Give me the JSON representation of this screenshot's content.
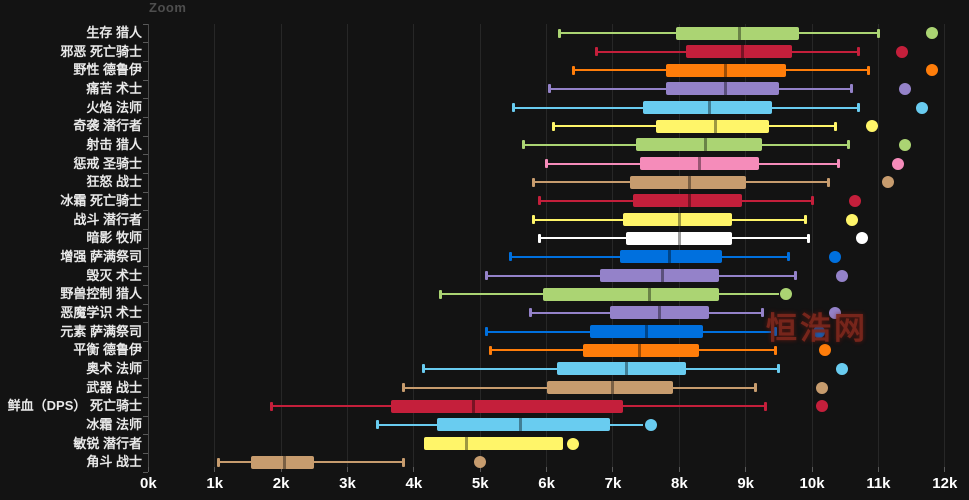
{
  "page": {
    "background": "#131313",
    "zoom_label": "Zoom",
    "watermark_text": "恒浩网",
    "watermark_color": "#7c271c"
  },
  "chart_data": {
    "type": "boxplot",
    "orientation": "horizontal",
    "title": "",
    "xlabel": "",
    "ylabel": "",
    "x_unit": "k",
    "xlim": [
      0,
      12
    ],
    "grid": true,
    "x_ticks": [
      "0k",
      "1k",
      "2k",
      "3k",
      "4k",
      "5k",
      "6k",
      "7k",
      "8k",
      "9k",
      "10k",
      "11k",
      "12k"
    ],
    "rows": [
      {
        "label": "生存 猎人",
        "color": "#ABD473",
        "low": 6.2,
        "q1": 7.95,
        "median": 8.9,
        "q3": 9.8,
        "high": 11.0,
        "outliers": [
          11.8
        ]
      },
      {
        "label": "邪恶 死亡骑士",
        "color": "#C41F3B",
        "low": 6.75,
        "q1": 8.1,
        "median": 8.95,
        "q3": 9.7,
        "high": 10.7,
        "outliers": [
          11.35
        ]
      },
      {
        "label": "野性 德鲁伊",
        "color": "#FF7D0A",
        "low": 6.4,
        "q1": 7.8,
        "median": 8.7,
        "q3": 9.6,
        "high": 10.85,
        "outliers": [
          11.8
        ]
      },
      {
        "label": "痛苦 术士",
        "color": "#9482C9",
        "low": 6.05,
        "q1": 7.8,
        "median": 8.7,
        "q3": 9.5,
        "high": 10.6,
        "outliers": [
          11.4
        ]
      },
      {
        "label": "火焰 法师",
        "color": "#69CCF0",
        "low": 5.5,
        "q1": 7.45,
        "median": 8.45,
        "q3": 9.4,
        "high": 10.7,
        "outliers": [
          11.65
        ]
      },
      {
        "label": "奇袭 潜行者",
        "color": "#FFF569",
        "low": 6.1,
        "q1": 7.65,
        "median": 8.55,
        "q3": 9.35,
        "high": 10.35,
        "outliers": [
          10.9
        ]
      },
      {
        "label": "射击 猎人",
        "color": "#ABD473",
        "low": 5.65,
        "q1": 7.35,
        "median": 8.4,
        "q3": 9.25,
        "high": 10.55,
        "outliers": [
          11.4
        ]
      },
      {
        "label": "惩戒 圣骑士",
        "color": "#F58CBA",
        "low": 6.0,
        "q1": 7.4,
        "median": 8.3,
        "q3": 9.2,
        "high": 10.4,
        "outliers": [
          11.3
        ]
      },
      {
        "label": "狂怒 战士",
        "color": "#C79C6E",
        "low": 5.8,
        "q1": 7.25,
        "median": 8.15,
        "q3": 9.0,
        "high": 10.25,
        "outliers": [
          11.15
        ]
      },
      {
        "label": "冰霜 死亡骑士",
        "color": "#C41F3B",
        "low": 5.9,
        "q1": 7.3,
        "median": 8.15,
        "q3": 8.95,
        "high": 10.0,
        "outliers": [
          10.65
        ]
      },
      {
        "label": "战斗 潜行者",
        "color": "#FFF569",
        "low": 5.8,
        "q1": 7.15,
        "median": 8.0,
        "q3": 8.8,
        "high": 9.9,
        "outliers": [
          10.6
        ]
      },
      {
        "label": "暗影 牧师",
        "color": "#FFFFFF",
        "low": 5.9,
        "q1": 7.2,
        "median": 8.0,
        "q3": 8.8,
        "high": 9.95,
        "outliers": [
          10.75
        ]
      },
      {
        "label": "增强 萨满祭司",
        "color": "#0070DE",
        "low": 5.45,
        "q1": 7.1,
        "median": 7.85,
        "q3": 8.65,
        "high": 9.65,
        "outliers": [
          10.35
        ]
      },
      {
        "label": "毁灭 术士",
        "color": "#9482C9",
        "low": 5.1,
        "q1": 6.8,
        "median": 7.75,
        "q3": 8.6,
        "high": 9.75,
        "outliers": [
          10.45
        ]
      },
      {
        "label": "野兽控制 猎人",
        "color": "#ABD473",
        "low": 4.4,
        "q1": 5.95,
        "median": 7.55,
        "q3": 8.6,
        "high": 9.5,
        "outliers": [
          9.6
        ],
        "cap_right": false
      },
      {
        "label": "恶魔学识 术士",
        "color": "#9482C9",
        "low": 5.75,
        "q1": 6.95,
        "median": 7.7,
        "q3": 8.45,
        "high": 9.25,
        "outliers": [
          10.35
        ]
      },
      {
        "label": "元素 萨满祭司",
        "color": "#0070DE",
        "low": 5.1,
        "q1": 6.65,
        "median": 7.5,
        "q3": 8.35,
        "high": 9.45,
        "outliers": [
          10.1
        ]
      },
      {
        "label": "平衡 德鲁伊",
        "color": "#FF7D0A",
        "low": 5.15,
        "q1": 6.55,
        "median": 7.4,
        "q3": 8.3,
        "high": 9.45,
        "outliers": [
          10.2
        ]
      },
      {
        "label": "奥术 法师",
        "color": "#69CCF0",
        "low": 4.15,
        "q1": 6.15,
        "median": 7.2,
        "q3": 8.1,
        "high": 9.5,
        "outliers": [
          10.45
        ]
      },
      {
        "label": "武器 战士",
        "color": "#C79C6E",
        "low": 3.85,
        "q1": 6.0,
        "median": 7.0,
        "q3": 7.9,
        "high": 9.15,
        "outliers": [
          10.15
        ]
      },
      {
        "label": "鲜血（DPS） 死亡骑士",
        "color": "#C41F3B",
        "low": 1.85,
        "q1": 3.65,
        "median": 4.9,
        "q3": 7.15,
        "high": 9.3,
        "outliers": [
          10.15
        ]
      },
      {
        "label": "冰霜 法师",
        "color": "#69CCF0",
        "low": 3.45,
        "q1": 4.35,
        "median": 5.6,
        "q3": 6.95,
        "high": 7.45,
        "outliers": [
          7.57
        ],
        "cap_right": false
      },
      {
        "label": "敏锐 潜行者",
        "color": "#FFF569",
        "low": 4.15,
        "q1": 4.15,
        "median": 4.8,
        "q3": 6.25,
        "high": 6.25,
        "outliers": [
          6.4
        ]
      },
      {
        "label": "角斗 战士",
        "color": "#C79C6E",
        "low": 1.05,
        "q1": 1.55,
        "median": 2.05,
        "q3": 2.5,
        "high": 3.85,
        "outliers": [
          5.0
        ]
      }
    ]
  }
}
